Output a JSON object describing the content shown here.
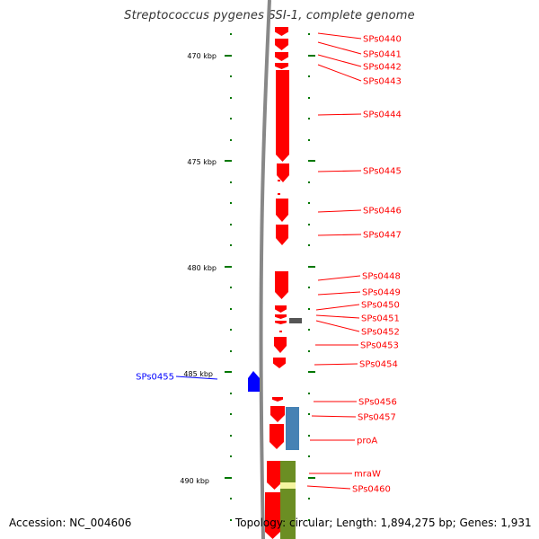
{
  "title": "Streptococcus pygenes SSI-1, complete genome",
  "footer": {
    "accession": "Accession: NC_004606",
    "topology": "Topology: circular; Length: 1,894,275 bp; Genes: 1,931"
  },
  "colors": {
    "forward_cds": "#ff0000",
    "reverse_cds": "#0000ff",
    "rna_gene": "#555555",
    "tick": "#007700",
    "feature_steelblue": "#4682b4",
    "feature_olive": "#6b8e23",
    "feature_highlight": "#f5f5a0",
    "backbone": "#888888"
  },
  "kbp_labels": [
    "470 kbp",
    "475 kbp",
    "480 kbp",
    "485 kbp",
    "490 kbp"
  ],
  "gene_labels": [
    {
      "name": "SPs0440",
      "strand": "forward"
    },
    {
      "name": "SPs0441",
      "strand": "forward"
    },
    {
      "name": "SPs0442",
      "strand": "forward"
    },
    {
      "name": "SPs0443",
      "strand": "forward"
    },
    {
      "name": "SPs0444",
      "strand": "forward"
    },
    {
      "name": "SPs0445",
      "strand": "forward"
    },
    {
      "name": "SPs0446",
      "strand": "forward"
    },
    {
      "name": "SPs0447",
      "strand": "forward"
    },
    {
      "name": "SPs0448",
      "strand": "forward"
    },
    {
      "name": "SPs0449",
      "strand": "forward"
    },
    {
      "name": "SPs0450",
      "strand": "forward"
    },
    {
      "name": "SPs0451",
      "strand": "forward"
    },
    {
      "name": "SPs0452",
      "strand": "forward"
    },
    {
      "name": "SPs0453",
      "strand": "forward"
    },
    {
      "name": "SPs0454",
      "strand": "forward"
    },
    {
      "name": "SPs0455",
      "strand": "reverse"
    },
    {
      "name": "SPs0456",
      "strand": "forward"
    },
    {
      "name": "SPs0457",
      "strand": "forward"
    },
    {
      "name": "proA",
      "strand": "forward"
    },
    {
      "name": "mraW",
      "strand": "forward"
    },
    {
      "name": "SPs0460",
      "strand": "forward"
    }
  ]
}
